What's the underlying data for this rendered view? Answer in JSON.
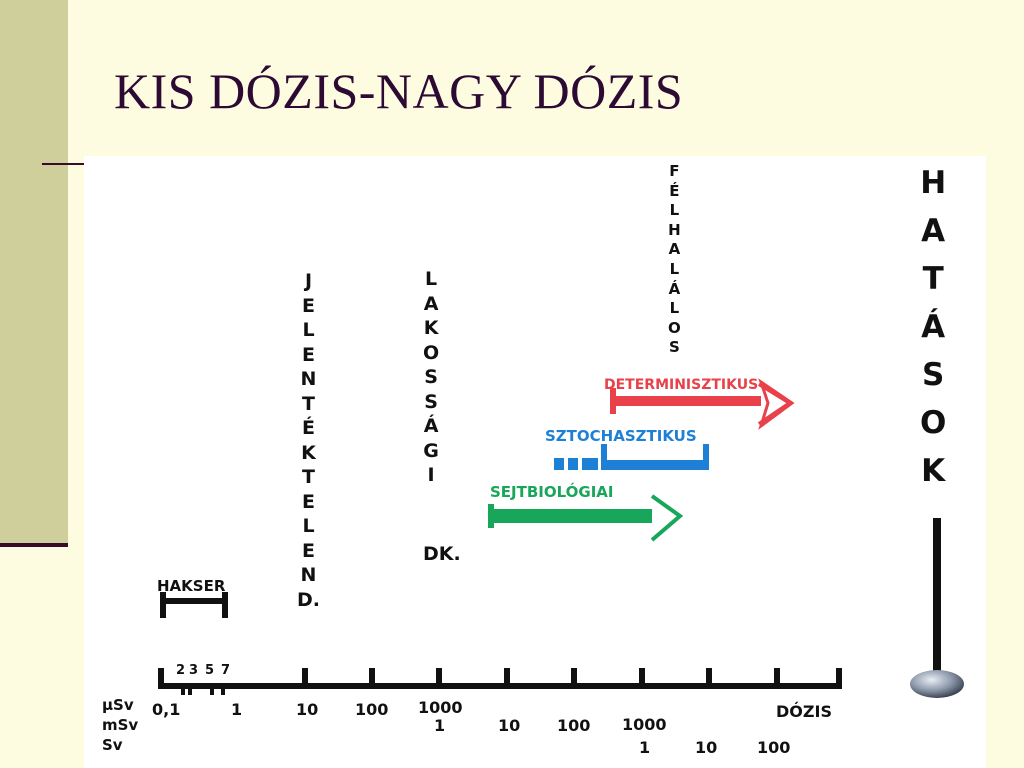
{
  "slide": {
    "title": "KIS DÓZIS-NAGY DÓZIS"
  },
  "colors": {
    "background": "#fdfbe0",
    "side_bar": "#cfcf9c",
    "title": "#2c0a33",
    "determinisztikus": "#e8414a",
    "sztochasztikus": "#1e7fd6",
    "sejtbiologiai": "#18a65a"
  },
  "figure": {
    "vertical_labels": {
      "jelentektelen": "JELENTÉKTELEND.",
      "lakossagi": "LAKOSSÁGI",
      "lakossagi_suffix": "DK.",
      "felhalalos": "FÉLHALÁLOS",
      "hatasok": "HATÁSOK"
    },
    "hakser": "HAKSER",
    "arrows": {
      "determinisztikus": "DETERMINISZTIKUS",
      "sztochasztikus": "SZTOCHASZTIKUS",
      "sejtbiologiai": "SEJTBIOLÓGIAI"
    },
    "axis": {
      "units": [
        "µSv",
        "mSv",
        "Sv"
      ],
      "small_ticks": [
        "2",
        "3",
        "5",
        "7"
      ],
      "usv_ticks": [
        "0,1",
        "1",
        "10",
        "100",
        "1000"
      ],
      "msv_ticks": [
        "1",
        "10",
        "100",
        "1000"
      ],
      "sv_ticks": [
        "1",
        "10",
        "100"
      ],
      "label": "DÓZIS"
    }
  }
}
